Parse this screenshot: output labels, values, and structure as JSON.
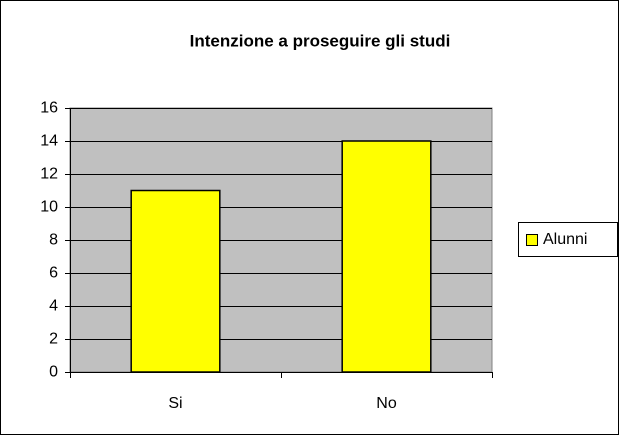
{
  "chart_data": {
    "type": "bar",
    "title": "Intenzione a proseguire gli studi",
    "categories": [
      "Si",
      "No"
    ],
    "series": [
      {
        "name": "Alunni",
        "color": "#ffff00",
        "values": [
          11,
          14
        ]
      }
    ],
    "ylim": [
      0,
      16
    ],
    "yticks": [
      0,
      2,
      4,
      6,
      8,
      10,
      12,
      14,
      16
    ],
    "grid": true,
    "legend": "right"
  }
}
